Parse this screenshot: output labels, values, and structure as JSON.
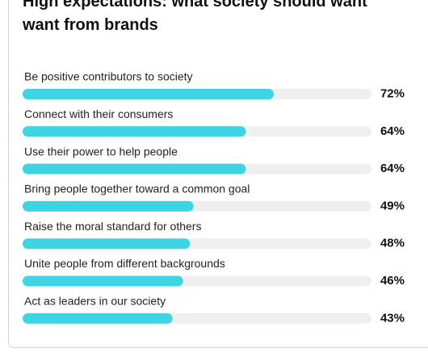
{
  "chart_data": {
    "type": "bar",
    "orientation": "horizontal",
    "title_lines": [
      "High expectations: what society should want",
      "want from brands"
    ],
    "categories": [
      "Be positive contributors to society",
      "Connect with their consumers",
      "Use their power to help people",
      "Bring people together toward a common goal",
      "Raise the moral standard for others",
      "Unite people from different backgrounds",
      "Act as leaders in our society"
    ],
    "values": [
      72,
      64,
      64,
      49,
      48,
      46,
      43
    ],
    "value_labels": [
      "72%",
      "64%",
      "64%",
      "49%",
      "48%",
      "46%",
      "43%"
    ],
    "xlim": [
      0,
      100
    ],
    "grid": false,
    "legend": "none",
    "colors": {
      "bar": "#3dd5e3",
      "track": "#efefef",
      "text": "#222222",
      "title": "#111111"
    }
  }
}
